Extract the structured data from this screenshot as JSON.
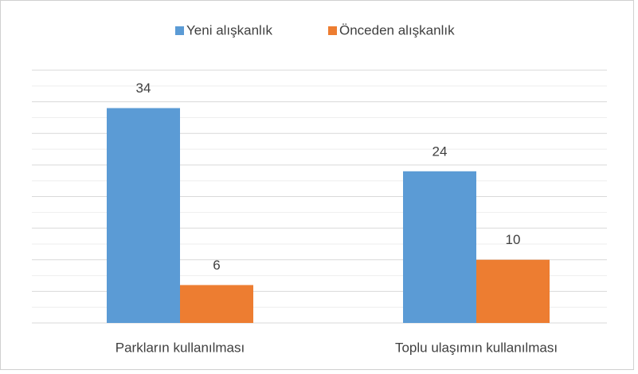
{
  "chart_data": {
    "type": "bar",
    "categories": [
      "Parkların kullanılması",
      "Toplu ulaşımın kullanılması"
    ],
    "series": [
      {
        "name": "Yeni alışkanlık",
        "color": "#5b9bd5",
        "values": [
          34,
          24
        ]
      },
      {
        "name": "Önceden alışkanlık",
        "color": "#ed7d31",
        "values": [
          6,
          10
        ]
      }
    ],
    "ylim": [
      0,
      40
    ],
    "yticks": [
      0,
      2.5,
      5,
      7.5,
      10,
      12.5,
      15,
      17.5,
      20,
      22.5,
      25,
      27.5,
      30,
      32.5,
      35,
      37.5,
      40
    ],
    "grid": true,
    "legend": "top"
  }
}
